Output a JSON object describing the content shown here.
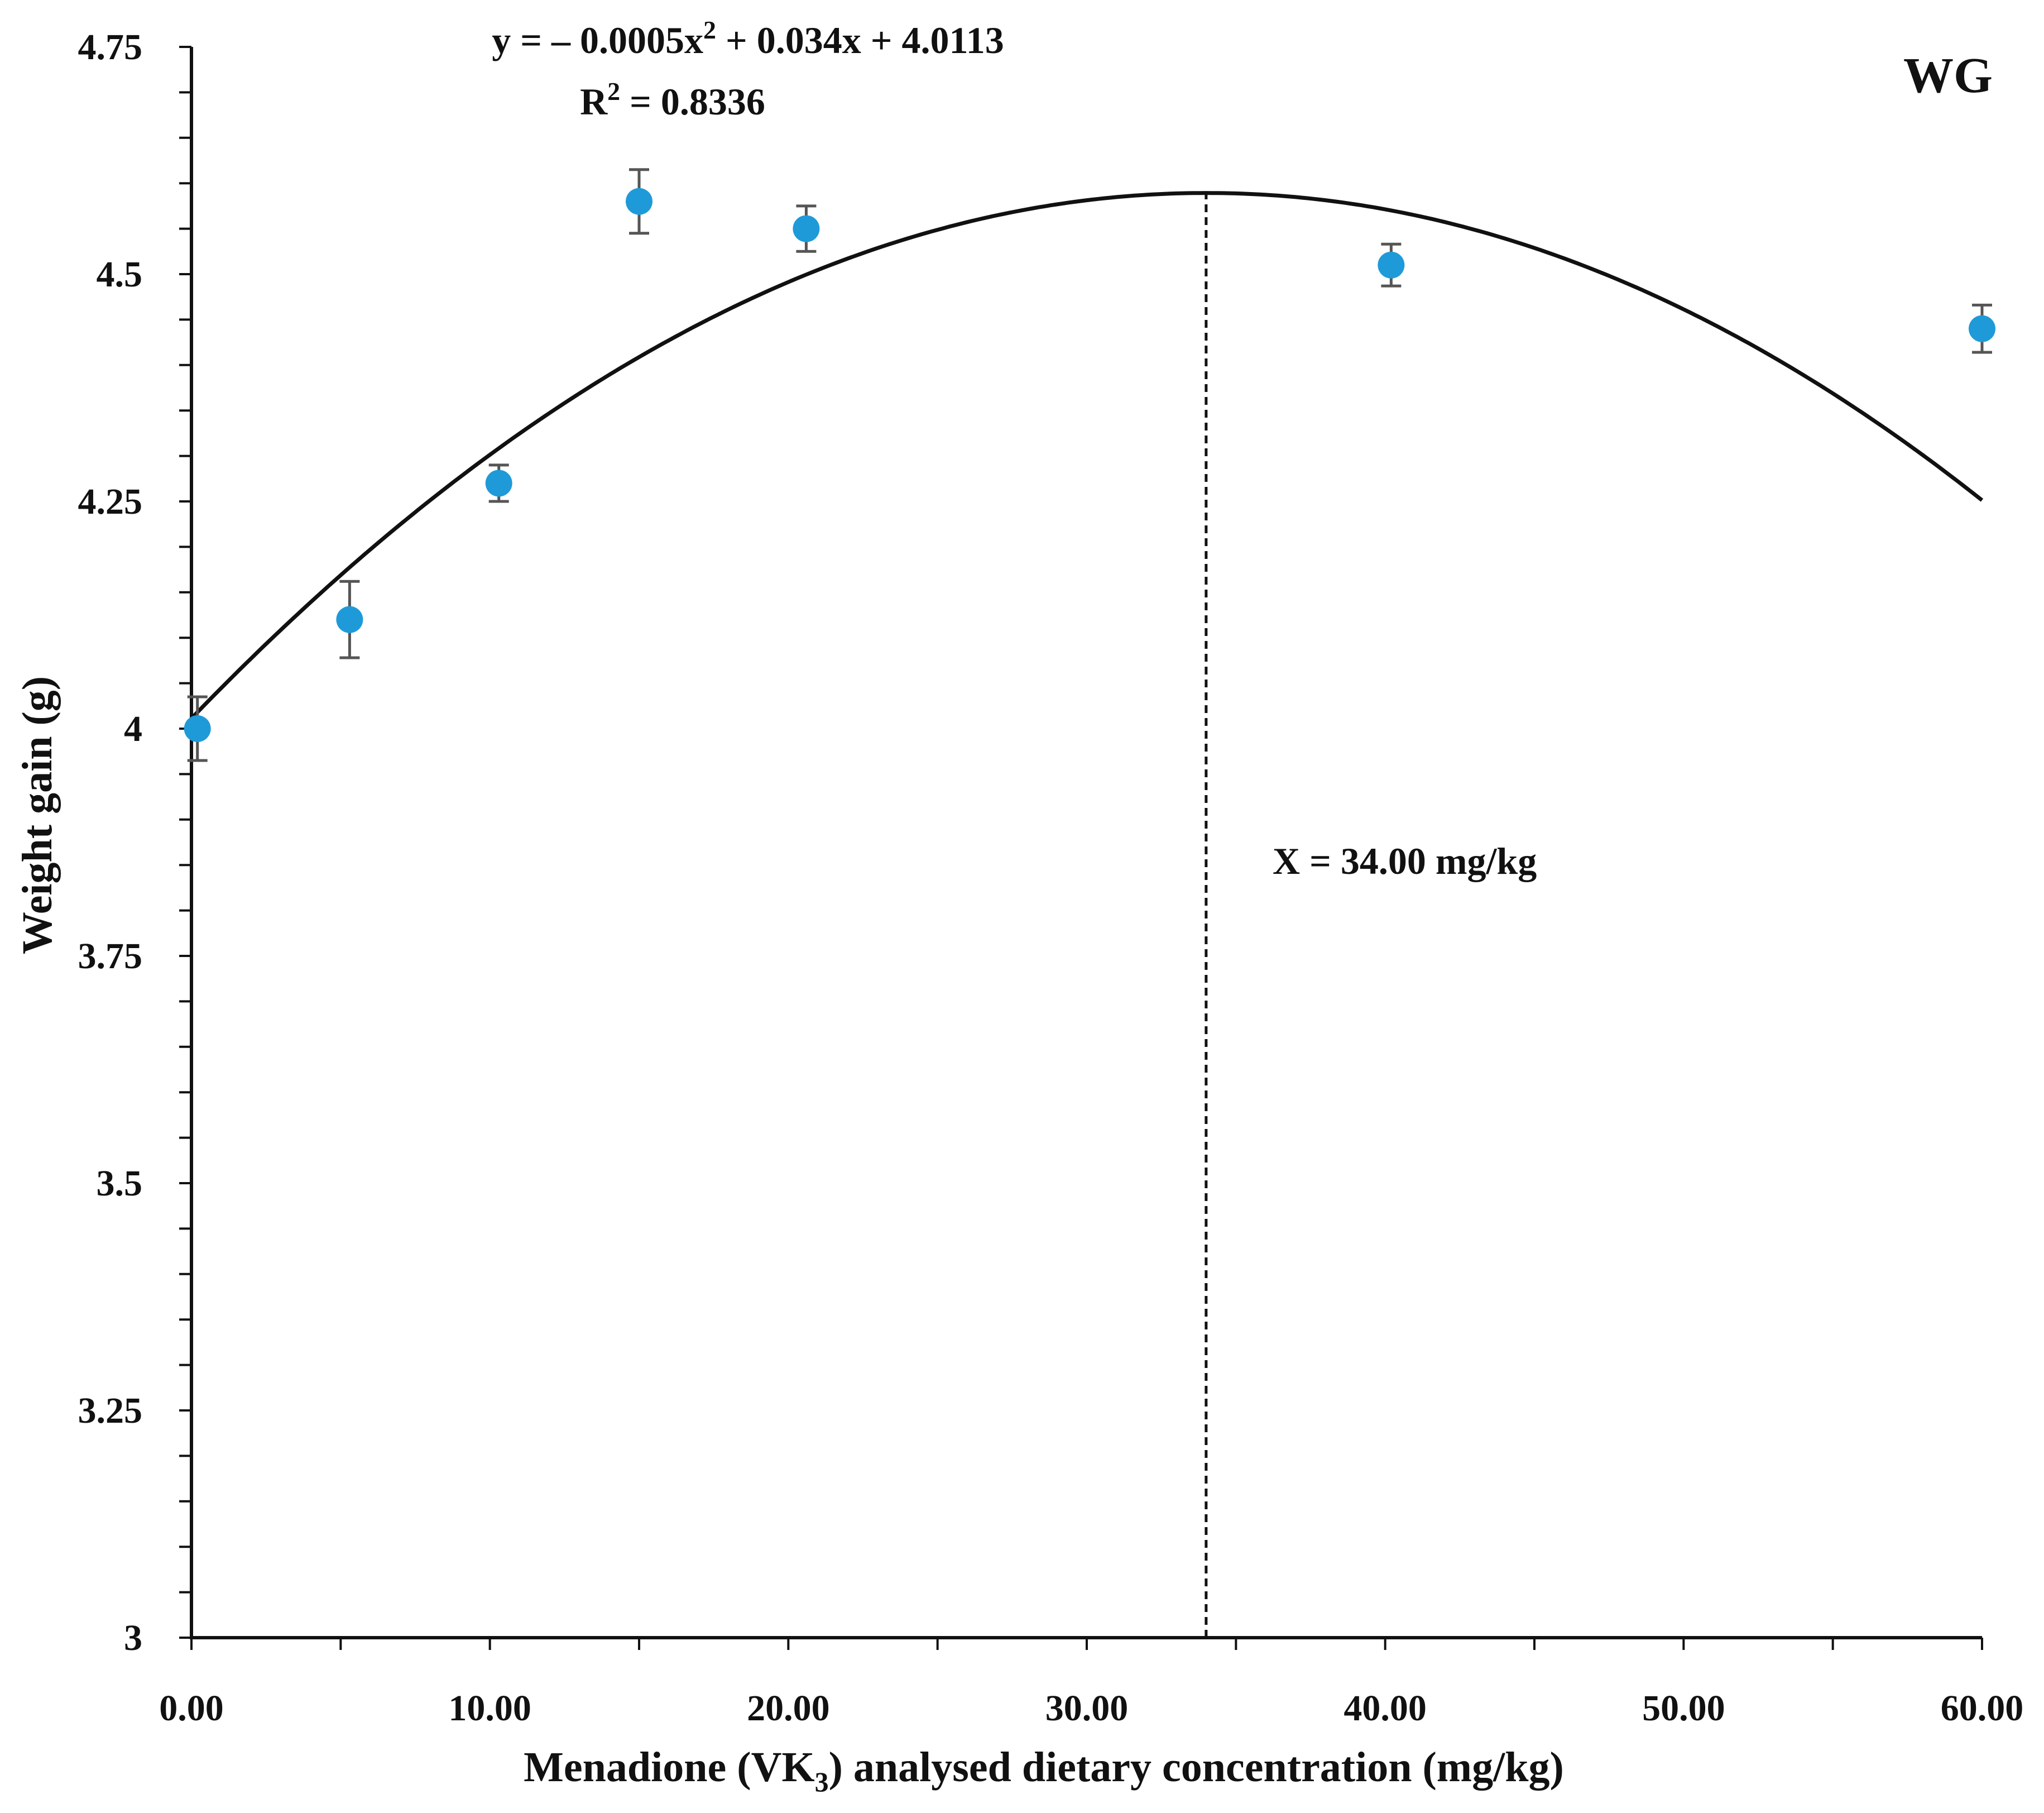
{
  "chart_data": {
    "type": "scatter",
    "panel_label": "WG",
    "xlabel_main": "Menadione (VK",
    "xlabel_sub": "3",
    "xlabel_end": ") analysed dietary concentration (mg/kg)",
    "ylabel": "Weight gain (g)",
    "xlim": [
      0,
      60
    ],
    "ylim": [
      3,
      4.75
    ],
    "x_ticks": [
      0,
      10,
      20,
      30,
      40,
      50,
      60
    ],
    "x_tick_labels": [
      "0.00",
      "10.00",
      "20.00",
      "30.00",
      "40.00",
      "50.00",
      "60.00"
    ],
    "x_minor_ticks": [
      5,
      15,
      25,
      35,
      45,
      55
    ],
    "y_ticks": [
      3,
      3.25,
      3.5,
      3.75,
      4,
      4.25,
      4.5,
      4.75
    ],
    "y_tick_labels": [
      "3",
      "3.25",
      "3.5",
      "3.75",
      "4",
      "4.25",
      "4.5",
      "4.75"
    ],
    "y_minor_ticks": [
      3.05,
      3.1,
      3.15,
      3.2,
      3.3,
      3.35,
      3.4,
      3.45,
      3.55,
      3.6,
      3.65,
      3.7,
      3.8,
      3.85,
      3.9,
      3.95,
      4.05,
      4.1,
      4.15,
      4.2,
      4.3,
      4.35,
      4.4,
      4.45,
      4.55,
      4.6,
      4.65,
      4.7
    ],
    "series": [
      {
        "name": "Weight gain",
        "color": "#1f9ad9",
        "x": [
          0.2,
          5.3,
          10.3,
          15.0,
          20.6,
          40.2,
          60.0
        ],
        "y": [
          4.0,
          4.12,
          4.27,
          4.58,
          4.55,
          4.51,
          4.44
        ],
        "err": [
          0.035,
          0.042,
          0.02,
          0.035,
          0.025,
          0.023,
          0.026
        ]
      }
    ],
    "fit": {
      "a": -0.0005,
      "b": 0.034,
      "c": 4.0113,
      "x_range": [
        0,
        60
      ],
      "equation_pre": "y = – 0.0005x",
      "equation_sup": "2",
      "equation_post": " + 0.034x + 4.0113",
      "r2_pre": "R",
      "r2_sup": "2",
      "r2_post": " = 0.8336"
    },
    "optimum_line": {
      "x": 34.0,
      "label": "X = 34.00 mg/kg"
    },
    "colors": {
      "axis": "#111111",
      "point": "#1f9ad9",
      "errorbar": "#555555",
      "fit": "#111111"
    }
  }
}
